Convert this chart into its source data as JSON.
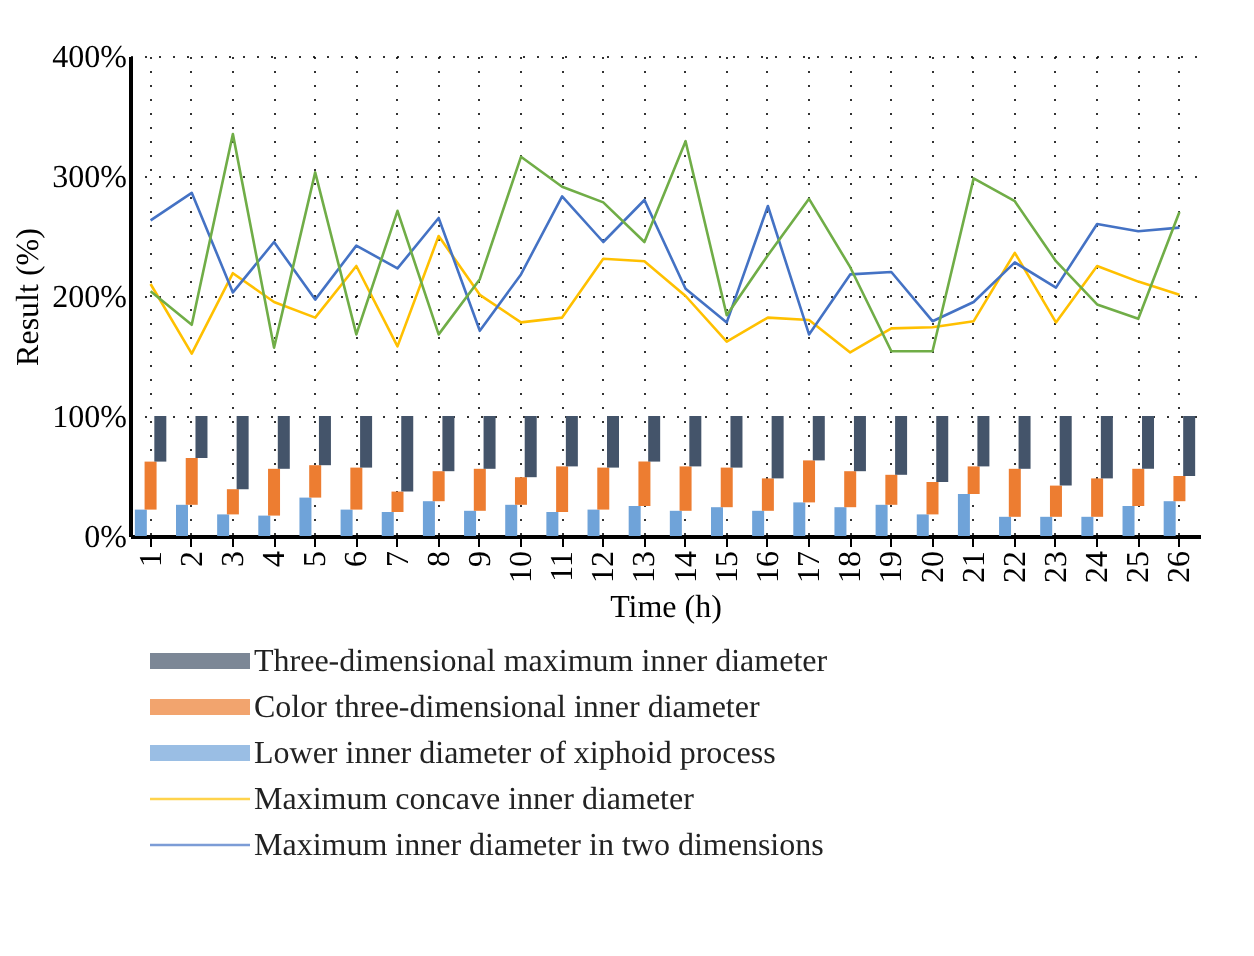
{
  "chart_data": {
    "type": "bar",
    "stacked": true,
    "xlabel": "Time (h)",
    "ylabel": "Result (%)",
    "categories": [
      "1",
      "2",
      "3",
      "4",
      "5",
      "6",
      "7",
      "8",
      "9",
      "10",
      "11",
      "12",
      "13",
      "14",
      "15",
      "16",
      "17",
      "18",
      "19",
      "20",
      "21",
      "22",
      "23",
      "24",
      "25",
      "26"
    ],
    "ylim": [
      0,
      400
    ],
    "yticks": [
      {
        "value": 0,
        "label": "0%"
      },
      {
        "value": 100,
        "label": "100%"
      },
      {
        "value": 200,
        "label": "200%"
      },
      {
        "value": 300,
        "label": "300%"
      },
      {
        "value": 400,
        "label": "400%"
      }
    ],
    "grid": true,
    "legend": "bottom",
    "line_style": "solid",
    "series": [
      {
        "name": "Lower inner diameter of xiphoid process",
        "color": "#6fa3d9",
        "values": [
          22,
          26,
          18,
          17,
          32,
          22,
          20,
          29,
          21,
          26,
          20,
          22,
          25,
          21,
          24,
          21,
          28,
          24,
          26,
          18,
          35,
          16,
          16,
          16,
          25,
          29
        ]
      },
      {
        "name": "Color three-dimensional inner diameter",
        "color": "#ed7d31",
        "values": [
          40,
          39,
          21,
          39,
          27,
          35,
          17,
          25,
          35,
          23,
          38,
          35,
          37,
          37,
          33,
          27,
          35,
          30,
          25,
          27,
          23,
          40,
          26,
          32,
          31,
          21
        ]
      },
      {
        "name": "Three-dimensional maximum inner diameter",
        "color": "#44546a",
        "values": [
          38,
          35,
          61,
          44,
          41,
          43,
          63,
          46,
          44,
          51,
          42,
          43,
          38,
          42,
          43,
          52,
          37,
          46,
          49,
          55,
          42,
          44,
          58,
          52,
          44,
          50
        ]
      },
      {
        "name": "Maximum concave inner diameter",
        "type": "line",
        "color": "#ffc000",
        "values": [
          210,
          152,
          219,
          195,
          182,
          225,
          158,
          250,
          201,
          178,
          182,
          231,
          229,
          200,
          162,
          182,
          180,
          153,
          173,
          174,
          179,
          236,
          178,
          225,
          212,
          201
        ]
      },
      {
        "name": "Maximum inner diameter in two dimensions",
        "type": "line",
        "color": "#4472c4",
        "values": [
          263,
          286,
          203,
          245,
          197,
          242,
          223,
          265,
          171,
          218,
          283,
          245,
          280,
          206,
          178,
          275,
          168,
          218,
          220,
          179,
          195,
          228,
          207,
          260,
          254,
          257
        ]
      },
      {
        "type": "line",
        "color": "#70ad47",
        "values": [
          204,
          176,
          335,
          157,
          303,
          168,
          271,
          168,
          214,
          316,
          291,
          278,
          245,
          329,
          184,
          234,
          281,
          224,
          154,
          154,
          298,
          279,
          229,
          193,
          181,
          270
        ]
      }
    ]
  }
}
